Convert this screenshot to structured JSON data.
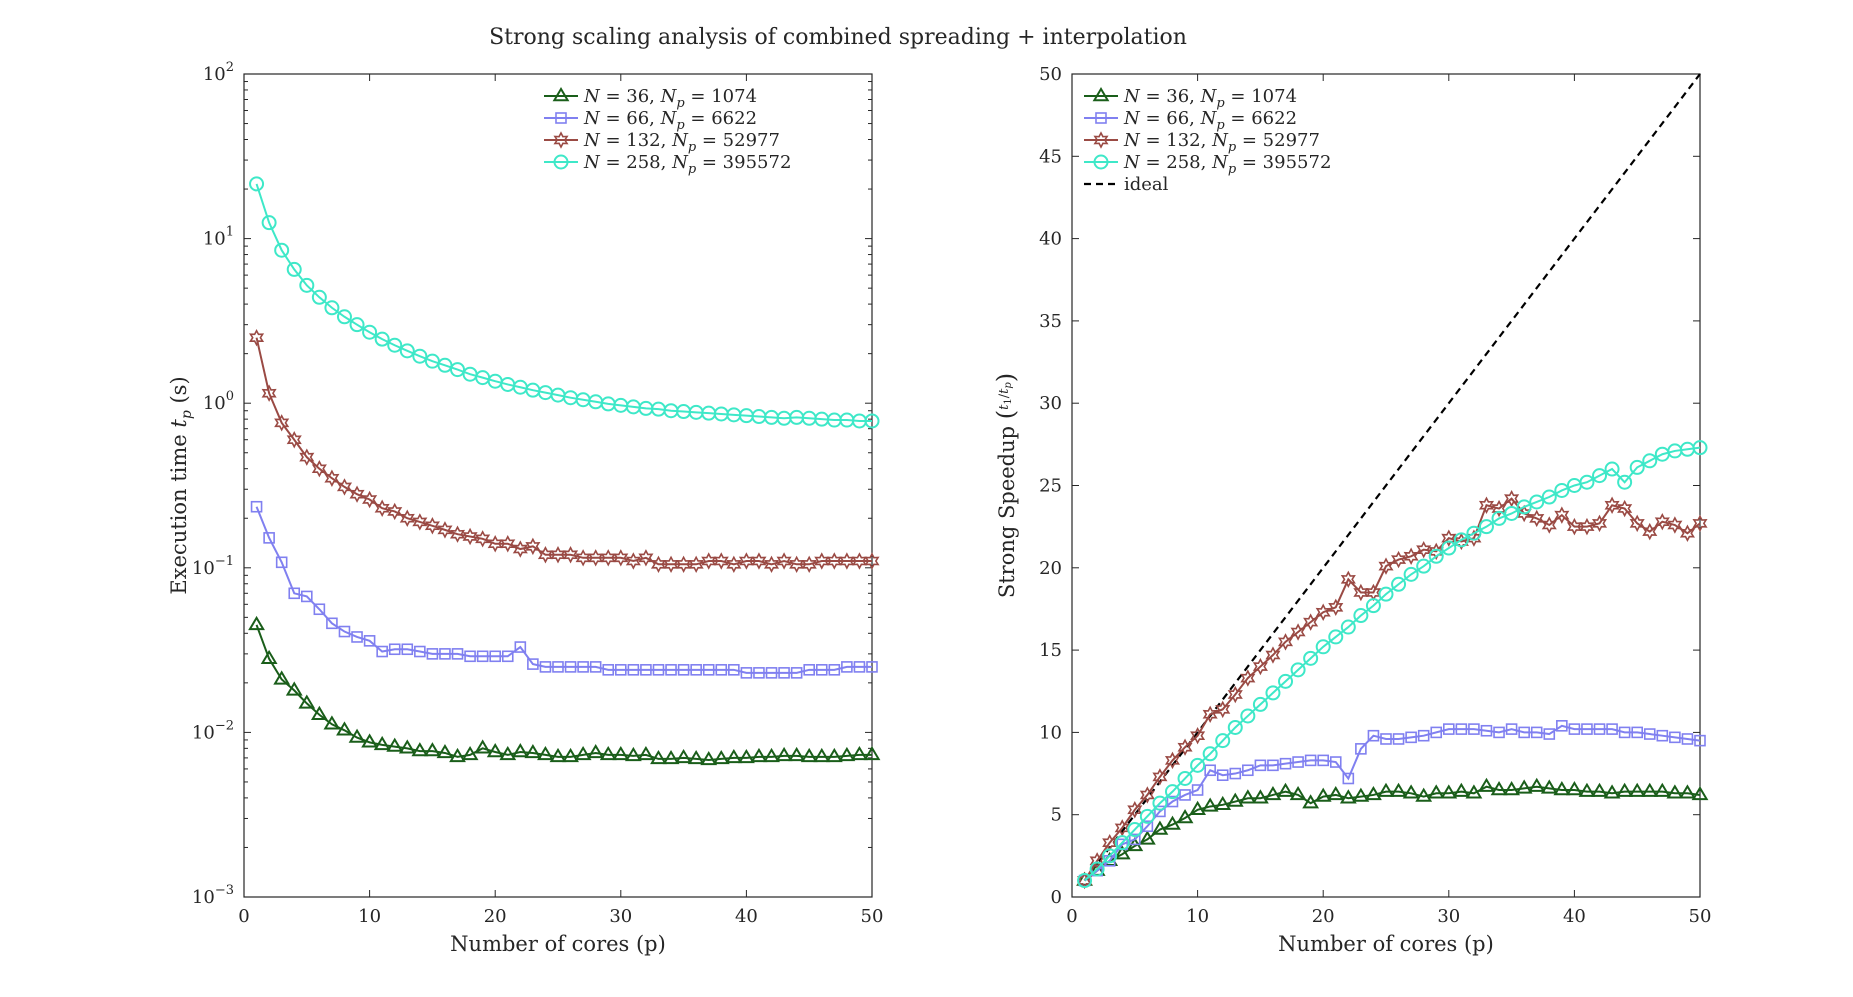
{
  "figure": {
    "title": "Strong scaling analysis of combined spreading + interpolation"
  },
  "chart_data": [
    {
      "type": "line",
      "xlabel": "Number of cores (p)",
      "ylabel": "Execution time t_p (s)",
      "ylabel_parts": {
        "pre": "Execution time ",
        "var": "t",
        "sub": "p",
        "post": " (s)"
      },
      "xlim": [
        0,
        50
      ],
      "ylim": [
        0.001,
        100
      ],
      "yscale": "log",
      "x_ticks": [
        "0",
        "10",
        "20",
        "30",
        "40",
        "50"
      ],
      "y_ticks": [
        {
          "base": "10",
          "exp": "−3"
        },
        {
          "base": "10",
          "exp": "−2"
        },
        {
          "base": "10",
          "exp": "−1"
        },
        {
          "base": "10",
          "exp": "0"
        },
        {
          "base": "10",
          "exp": "1"
        },
        {
          "base": "10",
          "exp": "2"
        }
      ],
      "legend_placement": "top-right",
      "grid": false,
      "series": [
        {
          "name": "N = 36, N_p = 1074",
          "legend": {
            "N": "36",
            "Np": "1074"
          },
          "color": "#1a5e1a",
          "marker": "triangle",
          "x": [
            1,
            2,
            3,
            4,
            5,
            6,
            7,
            8,
            9,
            10,
            11,
            12,
            13,
            14,
            15,
            16,
            17,
            18,
            19,
            20,
            21,
            22,
            23,
            24,
            25,
            26,
            27,
            28,
            29,
            30,
            31,
            32,
            33,
            34,
            35,
            36,
            37,
            38,
            39,
            40,
            41,
            42,
            43,
            44,
            45,
            46,
            47,
            48,
            49,
            50
          ],
          "values": [
            0.045,
            0.028,
            0.021,
            0.018,
            0.015,
            0.0128,
            0.0112,
            0.0103,
            0.0093,
            0.0087,
            0.0084,
            0.0082,
            0.008,
            0.0077,
            0.0077,
            0.0075,
            0.0071,
            0.0073,
            0.008,
            0.0076,
            0.0073,
            0.0076,
            0.0075,
            0.0073,
            0.0071,
            0.0071,
            0.0073,
            0.0075,
            0.0073,
            0.0073,
            0.0072,
            0.0073,
            0.0069,
            0.0069,
            0.007,
            0.0069,
            0.0068,
            0.0069,
            0.007,
            0.007,
            0.0071,
            0.0071,
            0.0072,
            0.0072,
            0.0071,
            0.0071,
            0.0071,
            0.0072,
            0.0073,
            0.0073
          ]
        },
        {
          "name": "N = 66, N_p = 6622",
          "legend": {
            "N": "66",
            "Np": "6622"
          },
          "color": "#8080f0",
          "marker": "square",
          "x": [
            1,
            2,
            3,
            4,
            5,
            6,
            7,
            8,
            9,
            10,
            11,
            12,
            13,
            14,
            15,
            16,
            17,
            18,
            19,
            20,
            21,
            22,
            23,
            24,
            25,
            26,
            27,
            28,
            29,
            30,
            31,
            32,
            33,
            34,
            35,
            36,
            37,
            38,
            39,
            40,
            41,
            42,
            43,
            44,
            45,
            46,
            47,
            48,
            49,
            50
          ],
          "values": [
            0.235,
            0.152,
            0.108,
            0.07,
            0.067,
            0.056,
            0.046,
            0.041,
            0.038,
            0.036,
            0.031,
            0.032,
            0.032,
            0.031,
            0.03,
            0.03,
            0.03,
            0.029,
            0.029,
            0.029,
            0.029,
            0.033,
            0.026,
            0.025,
            0.025,
            0.025,
            0.025,
            0.025,
            0.024,
            0.024,
            0.024,
            0.024,
            0.024,
            0.024,
            0.024,
            0.024,
            0.024,
            0.024,
            0.024,
            0.023,
            0.023,
            0.023,
            0.023,
            0.023,
            0.024,
            0.024,
            0.024,
            0.025,
            0.025,
            0.025
          ]
        },
        {
          "name": "N = 132, N_p = 52977",
          "legend": {
            "N": "132",
            "Np": "52977"
          },
          "color": "#9a4a44",
          "marker": "hexagram",
          "x": [
            1,
            2,
            3,
            4,
            5,
            6,
            7,
            8,
            9,
            10,
            11,
            12,
            13,
            14,
            15,
            16,
            17,
            18,
            19,
            20,
            21,
            22,
            23,
            24,
            25,
            26,
            27,
            28,
            29,
            30,
            31,
            32,
            33,
            34,
            35,
            36,
            37,
            38,
            39,
            40,
            41,
            42,
            43,
            44,
            45,
            46,
            47,
            48,
            49,
            50
          ],
          "values": [
            2.5,
            1.15,
            0.76,
            0.6,
            0.47,
            0.4,
            0.35,
            0.31,
            0.28,
            0.26,
            0.23,
            0.22,
            0.2,
            0.19,
            0.18,
            0.17,
            0.16,
            0.155,
            0.15,
            0.14,
            0.14,
            0.13,
            0.135,
            0.12,
            0.12,
            0.12,
            0.115,
            0.115,
            0.115,
            0.115,
            0.11,
            0.115,
            0.105,
            0.105,
            0.105,
            0.105,
            0.11,
            0.11,
            0.105,
            0.11,
            0.11,
            0.105,
            0.11,
            0.105,
            0.105,
            0.11,
            0.11,
            0.11,
            0.11,
            0.11
          ]
        },
        {
          "name": "N = 258, N_p = 395572",
          "legend": {
            "N": "258",
            "Np": "395572"
          },
          "color": "#3ee8c8",
          "marker": "circle",
          "x": [
            1,
            2,
            3,
            4,
            5,
            6,
            7,
            8,
            9,
            10,
            11,
            12,
            13,
            14,
            15,
            16,
            17,
            18,
            19,
            20,
            21,
            22,
            23,
            24,
            25,
            26,
            27,
            28,
            29,
            30,
            31,
            32,
            33,
            34,
            35,
            36,
            37,
            38,
            39,
            40,
            41,
            42,
            43,
            44,
            45,
            46,
            47,
            48,
            49,
            50
          ],
          "values": [
            21.5,
            12.5,
            8.5,
            6.5,
            5.2,
            4.4,
            3.8,
            3.35,
            3.0,
            2.7,
            2.45,
            2.25,
            2.08,
            1.93,
            1.8,
            1.7,
            1.6,
            1.5,
            1.43,
            1.36,
            1.3,
            1.25,
            1.2,
            1.16,
            1.12,
            1.08,
            1.05,
            1.02,
            0.99,
            0.97,
            0.95,
            0.93,
            0.92,
            0.9,
            0.89,
            0.88,
            0.87,
            0.86,
            0.85,
            0.84,
            0.83,
            0.82,
            0.81,
            0.82,
            0.81,
            0.8,
            0.79,
            0.79,
            0.78,
            0.78
          ]
        }
      ]
    },
    {
      "type": "line",
      "xlabel": "Number of cores (p)",
      "ylabel": "Strong Speedup (t1/tp)",
      "ylabel_parts": {
        "pre": "Strong Speedup "
      },
      "xlim": [
        0,
        50
      ],
      "ylim": [
        0,
        50
      ],
      "yscale": "linear",
      "x_ticks": [
        "0",
        "10",
        "20",
        "30",
        "40",
        "50"
      ],
      "y_ticks": [
        "0",
        "5",
        "10",
        "15",
        "20",
        "25",
        "30",
        "35",
        "40",
        "45",
        "50"
      ],
      "legend_placement": "top-left",
      "grid": false,
      "ideal_label": "ideal",
      "ideal": {
        "x": [
          1,
          50
        ],
        "values": [
          1,
          50
        ],
        "color": "#000000"
      },
      "series": [
        {
          "name": "N = 36, N_p = 1074",
          "legend": {
            "N": "36",
            "Np": "1074"
          },
          "color": "#1a5e1a",
          "marker": "triangle",
          "x": [
            1,
            2,
            3,
            4,
            5,
            6,
            7,
            8,
            9,
            10,
            11,
            12,
            13,
            14,
            15,
            16,
            17,
            18,
            19,
            20,
            21,
            22,
            23,
            24,
            25,
            26,
            27,
            28,
            29,
            30,
            31,
            32,
            33,
            34,
            35,
            36,
            37,
            38,
            39,
            40,
            41,
            42,
            43,
            44,
            45,
            46,
            47,
            48,
            49,
            50
          ],
          "values": [
            1.0,
            1.6,
            2.2,
            2.6,
            3.1,
            3.5,
            4.1,
            4.4,
            4.8,
            5.3,
            5.5,
            5.6,
            5.8,
            6.0,
            6.0,
            6.2,
            6.4,
            6.2,
            5.7,
            6.1,
            6.2,
            6.0,
            6.1,
            6.2,
            6.4,
            6.4,
            6.3,
            6.1,
            6.3,
            6.3,
            6.4,
            6.3,
            6.7,
            6.5,
            6.5,
            6.6,
            6.7,
            6.6,
            6.5,
            6.5,
            6.4,
            6.4,
            6.3,
            6.4,
            6.4,
            6.4,
            6.4,
            6.3,
            6.3,
            6.2
          ]
        },
        {
          "name": "N = 66, N_p = 6622",
          "legend": {
            "N": "66",
            "Np": "6622"
          },
          "color": "#8080f0",
          "marker": "square",
          "x": [
            1,
            2,
            3,
            4,
            5,
            6,
            7,
            8,
            9,
            10,
            11,
            12,
            13,
            14,
            15,
            16,
            17,
            18,
            19,
            20,
            21,
            22,
            23,
            24,
            25,
            26,
            27,
            28,
            29,
            30,
            31,
            32,
            33,
            34,
            35,
            36,
            37,
            38,
            39,
            40,
            41,
            42,
            43,
            44,
            45,
            46,
            47,
            48,
            49,
            50
          ],
          "values": [
            1.0,
            1.6,
            2.2,
            3.2,
            3.5,
            4.3,
            5.2,
            5.8,
            6.2,
            6.5,
            7.7,
            7.4,
            7.5,
            7.7,
            8.0,
            8.0,
            8.1,
            8.2,
            8.3,
            8.3,
            8.2,
            7.2,
            9.0,
            9.8,
            9.6,
            9.6,
            9.7,
            9.8,
            10.0,
            10.2,
            10.2,
            10.2,
            10.1,
            10.0,
            10.2,
            10.0,
            10.0,
            9.9,
            10.4,
            10.2,
            10.2,
            10.2,
            10.2,
            10.0,
            10.0,
            9.9,
            9.8,
            9.7,
            9.6,
            9.5
          ]
        },
        {
          "name": "N = 132, N_p = 52977",
          "legend": {
            "N": "132",
            "Np": "52977"
          },
          "color": "#9a4a44",
          "marker": "hexagram",
          "x": [
            1,
            2,
            3,
            4,
            5,
            6,
            7,
            8,
            9,
            10,
            11,
            12,
            13,
            14,
            15,
            16,
            17,
            18,
            19,
            20,
            21,
            22,
            23,
            24,
            25,
            26,
            27,
            28,
            29,
            30,
            31,
            32,
            33,
            34,
            35,
            36,
            37,
            38,
            39,
            40,
            41,
            42,
            43,
            44,
            45,
            46,
            47,
            48,
            49,
            50
          ],
          "values": [
            1.0,
            2.2,
            3.3,
            4.2,
            5.3,
            6.2,
            7.3,
            8.3,
            9.1,
            9.8,
            11.1,
            11.4,
            12.3,
            13.3,
            14.0,
            14.7,
            15.5,
            16.1,
            16.7,
            17.3,
            17.6,
            19.3,
            18.5,
            18.5,
            20.1,
            20.5,
            20.7,
            21.1,
            21.0,
            21.8,
            21.6,
            21.8,
            23.8,
            23.6,
            24.2,
            23.3,
            23.0,
            22.6,
            23.2,
            22.5,
            22.5,
            22.7,
            23.8,
            23.6,
            22.7,
            22.2,
            22.8,
            22.6,
            22.1,
            22.7
          ]
        },
        {
          "name": "N = 258, N_p = 395572",
          "legend": {
            "N": "258",
            "Np": "395572"
          },
          "color": "#3ee8c8",
          "marker": "circle",
          "x": [
            1,
            2,
            3,
            4,
            5,
            6,
            7,
            8,
            9,
            10,
            11,
            12,
            13,
            14,
            15,
            16,
            17,
            18,
            19,
            20,
            21,
            22,
            23,
            24,
            25,
            26,
            27,
            28,
            29,
            30,
            31,
            32,
            33,
            34,
            35,
            36,
            37,
            38,
            39,
            40,
            41,
            42,
            43,
            44,
            45,
            46,
            47,
            48,
            49,
            50
          ],
          "values": [
            1.0,
            1.7,
            2.5,
            3.3,
            4.1,
            4.9,
            5.7,
            6.4,
            7.2,
            8.0,
            8.7,
            9.5,
            10.3,
            11.0,
            11.7,
            12.4,
            13.1,
            13.8,
            14.5,
            15.2,
            15.8,
            16.4,
            17.1,
            17.7,
            18.4,
            19.0,
            19.6,
            20.1,
            20.7,
            21.2,
            21.7,
            22.1,
            22.5,
            23.0,
            23.3,
            23.7,
            24.0,
            24.3,
            24.7,
            25.0,
            25.2,
            25.6,
            26.0,
            25.2,
            26.1,
            26.5,
            26.9,
            27.1,
            27.2,
            27.3
          ]
        }
      ]
    }
  ]
}
